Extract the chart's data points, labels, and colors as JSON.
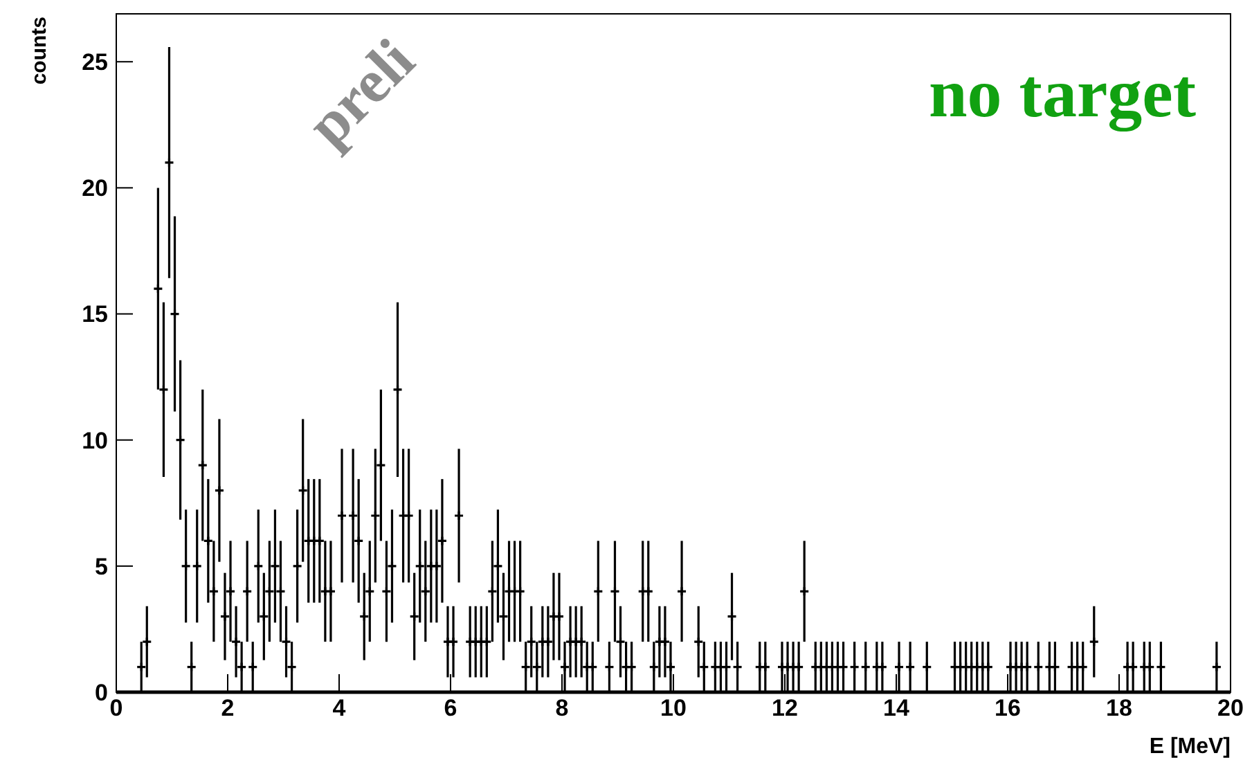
{
  "chart_data": {
    "type": "scatter",
    "xlabel": "E [MeV]",
    "ylabel": "counts",
    "annotations": [
      "no target",
      "preli"
    ],
    "x": [
      0.45,
      0.55,
      0.75,
      0.85,
      0.95,
      1.05,
      1.15,
      1.25,
      1.35,
      1.45,
      1.55,
      1.65,
      1.75,
      1.85,
      1.95,
      2.05,
      2.15,
      2.25,
      2.35,
      2.45,
      2.55,
      2.65,
      2.75,
      2.85,
      2.95,
      3.05,
      3.15,
      3.25,
      3.35,
      3.45,
      3.55,
      3.65,
      3.75,
      3.85,
      4.05,
      4.25,
      4.35,
      4.45,
      4.55,
      4.65,
      4.75,
      4.85,
      4.95,
      5.05,
      5.15,
      5.25,
      5.35,
      5.45,
      5.55,
      5.65,
      5.75,
      5.85,
      5.95,
      6.05,
      6.15,
      6.35,
      6.45,
      6.55,
      6.65,
      6.75,
      6.85,
      6.95,
      7.05,
      7.15,
      7.25,
      7.35,
      7.45,
      7.55,
      7.65,
      7.75,
      7.85,
      7.95,
      8.05,
      8.15,
      8.25,
      8.35,
      8.45,
      8.55,
      8.65,
      8.85,
      8.95,
      9.05,
      9.15,
      9.25,
      9.45,
      9.55,
      9.65,
      9.75,
      9.85,
      9.95,
      10.15,
      10.45,
      10.55,
      10.75,
      10.85,
      10.95,
      11.05,
      11.15,
      11.55,
      11.65,
      11.95,
      12.05,
      12.15,
      12.25,
      12.35,
      12.55,
      12.65,
      12.75,
      12.85,
      12.95,
      13.05,
      13.25,
      13.45,
      13.65,
      13.75,
      14.05,
      14.25,
      14.55,
      15.05,
      15.15,
      15.25,
      15.35,
      15.45,
      15.55,
      15.65,
      16.05,
      16.15,
      16.25,
      16.35,
      16.55,
      16.75,
      16.85,
      17.15,
      17.25,
      17.35,
      17.55,
      18.15,
      18.25,
      18.45,
      18.55,
      18.75,
      19.75
    ],
    "values": [
      1,
      2,
      16,
      12,
      21,
      15,
      10,
      5,
      1,
      5,
      9,
      6,
      4,
      8,
      3,
      4,
      2,
      1,
      4,
      1,
      5,
      3,
      4,
      5,
      4,
      2,
      1,
      5,
      8,
      6,
      6,
      6,
      4,
      4,
      7,
      7,
      6,
      3,
      4,
      7,
      9,
      4,
      5,
      12,
      7,
      7,
      3,
      5,
      4,
      5,
      5,
      6,
      2,
      2,
      7,
      2,
      2,
      2,
      2,
      4,
      5,
      3,
      4,
      4,
      4,
      1,
      2,
      1,
      2,
      2,
      3,
      3,
      1,
      2,
      2,
      2,
      1,
      1,
      4,
      1,
      4,
      2,
      1,
      1,
      4,
      4,
      1,
      2,
      2,
      1,
      4,
      2,
      1,
      1,
      1,
      1,
      3,
      1,
      1,
      1,
      1,
      1,
      1,
      1,
      4,
      1,
      1,
      1,
      1,
      1,
      1,
      1,
      1,
      1,
      1,
      1,
      1,
      1,
      1,
      1,
      1,
      1,
      1,
      1,
      1,
      1,
      1,
      1,
      1,
      1,
      1,
      1,
      1,
      1,
      1,
      2,
      1,
      1,
      1,
      1,
      1,
      1
    ],
    "errors": [
      1,
      1.41,
      4,
      3.46,
      4.58,
      3.87,
      3.16,
      2.24,
      1,
      2.24,
      3,
      2.45,
      2,
      2.83,
      1.73,
      2,
      1.41,
      1,
      2,
      1,
      2.24,
      1.73,
      2,
      2.24,
      2,
      1.41,
      1,
      2.24,
      2.83,
      2.45,
      2.45,
      2.45,
      2,
      2,
      2.65,
      2.65,
      2.45,
      1.73,
      2,
      2.65,
      3,
      2,
      2.24,
      3.46,
      2.65,
      2.65,
      1.73,
      2.24,
      2,
      2.24,
      2.24,
      2.45,
      1.41,
      1.41,
      2.65,
      1.41,
      1.41,
      1.41,
      1.41,
      2,
      2.24,
      1.73,
      2,
      2,
      2,
      1,
      1.41,
      1,
      1.41,
      1.41,
      1.73,
      1.73,
      1,
      1.41,
      1.41,
      1.41,
      1,
      1,
      2,
      1,
      2,
      1.41,
      1,
      1,
      2,
      2,
      1,
      1.41,
      1.41,
      1,
      2,
      1.41,
      1,
      1,
      1,
      1,
      1.73,
      1,
      1,
      1,
      1,
      1,
      1,
      1,
      2,
      1,
      1,
      1,
      1,
      1,
      1,
      1,
      1,
      1,
      1,
      1,
      1,
      1,
      1,
      1,
      1,
      1,
      1,
      1,
      1,
      1,
      1,
      1,
      1,
      1,
      1,
      1,
      1,
      1,
      1,
      1.41,
      1,
      1,
      1,
      1,
      1,
      1
    ],
    "xerrors": [
      0.05,
      0.05,
      0.05,
      0.05,
      0.05,
      0.05,
      0.05,
      0.05,
      0.05,
      0.05,
      0.05,
      0.05,
      0.05,
      0.05,
      0.05,
      0.05,
      0.05,
      0.05,
      0.05,
      0.05,
      0.05,
      0.05,
      0.05,
      0.05,
      0.05,
      0.05,
      0.05,
      0.05,
      0.05,
      0.05,
      0.05,
      0.05,
      0.05,
      0.05,
      0.05,
      0.05,
      0.05,
      0.05,
      0.05,
      0.05,
      0.05,
      0.05,
      0.05,
      0.05,
      0.05,
      0.05,
      0.05,
      0.05,
      0.05,
      0.05,
      0.05,
      0.05,
      0.05,
      0.05,
      0.05,
      0.05,
      0.05,
      0.05,
      0.05,
      0.05,
      0.05,
      0.05,
      0.05,
      0.05,
      0.05,
      0.05,
      0.05,
      0.05,
      0.05,
      0.05,
      0.05,
      0.05,
      0.05,
      0.05,
      0.05,
      0.05,
      0.05,
      0.05,
      0.05,
      0.05,
      0.05,
      0.05,
      0.05,
      0.05,
      0.05,
      0.05,
      0.05,
      0.05,
      0.05,
      0.05,
      0.05,
      0.05,
      0.05,
      0.05,
      0.05,
      0.05,
      0.05,
      0.05,
      0.05,
      0.05,
      0.05,
      0.05,
      0.05,
      0.05,
      0.05,
      0.05,
      0.05,
      0.05,
      0.05,
      0.05,
      0.05,
      0.05,
      0.05,
      0.05,
      0.05,
      0.05,
      0.05,
      0.05,
      0.05,
      0.05,
      0.05,
      0.05,
      0.05,
      0.05,
      0.05,
      0.05,
      0.05,
      0.05,
      0.05,
      0.05,
      0.05,
      0.05,
      0.05,
      0.05,
      0.05,
      0.05,
      0.05,
      0.05,
      0.05,
      0.05,
      0.05,
      0.05
    ],
    "color": "#000000",
    "marker": "cross",
    "xlim": [
      0,
      20
    ],
    "xticks": [
      0,
      2,
      4,
      6,
      8,
      10,
      12,
      14,
      16,
      18,
      20
    ],
    "ylim": [
      0,
      26.9
    ],
    "yticks": [
      0,
      5,
      10,
      15,
      20,
      25
    ],
    "grid": false
  }
}
